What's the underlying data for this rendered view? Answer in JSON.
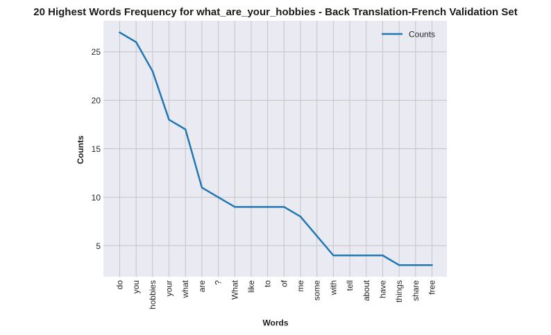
{
  "chart_data": {
    "type": "line",
    "title": "20 Highest Words Frequency for what_are_your_hobbies - Back Translation-French Validation Set",
    "xlabel": "Words",
    "ylabel": "Counts",
    "categories": [
      "do",
      "you",
      "hobbies",
      "your",
      "what",
      "are",
      "?",
      "What",
      "like",
      "to",
      "of",
      "me",
      "some",
      "with",
      "tell",
      "about",
      "have",
      "things",
      "share",
      "free"
    ],
    "series": [
      {
        "name": "Counts",
        "values": [
          27,
          26,
          23,
          18,
          17,
          11,
          10,
          9,
          9,
          9,
          9,
          8,
          6,
          4,
          4,
          4,
          4,
          3,
          3,
          3
        ]
      }
    ],
    "ylim": [
      1.8,
      28.2
    ],
    "yticks": [
      5,
      10,
      15,
      20,
      25
    ],
    "grid": true,
    "legend_position": "top-right",
    "colors": {
      "line": "#1f77b4",
      "plot_background": "#eaeaf2",
      "grid": "#c4c4c4"
    }
  }
}
